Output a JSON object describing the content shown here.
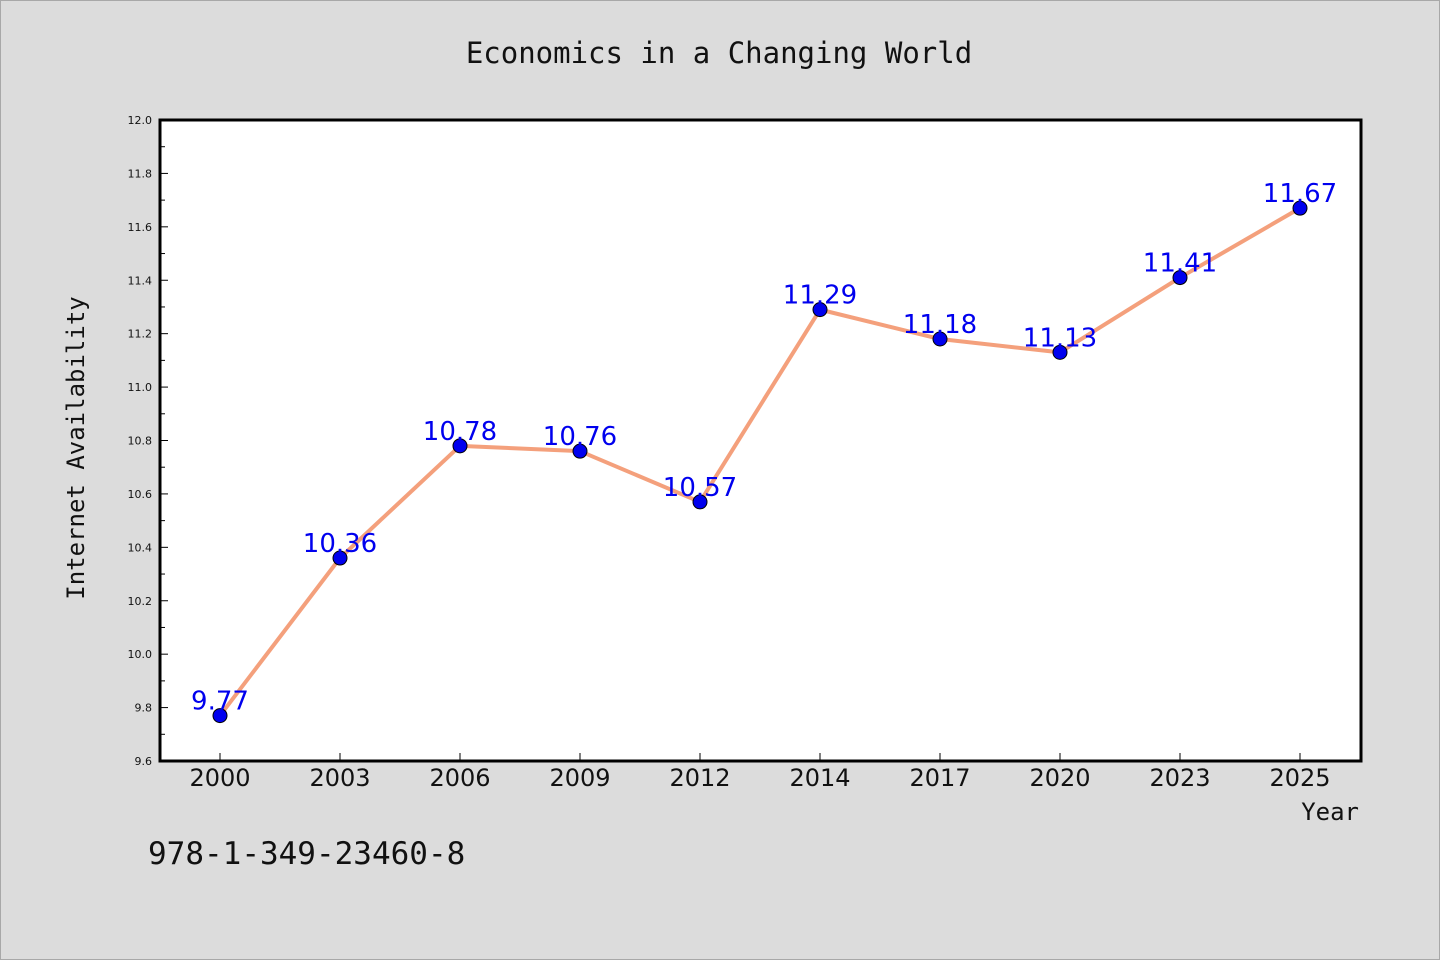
{
  "colors": {
    "page_background": "#dcdcdc",
    "plot_background": "#ffffff",
    "line": "#f4a07c",
    "marker_fill": "#0000ee",
    "data_label": "#0000ee"
  },
  "isbn": "978-1-349-23460-8",
  "chart_data": {
    "type": "line",
    "title": "Economics in a Changing World",
    "xlabel": "Year",
    "ylabel": "Internet Availability",
    "categories": [
      "2000",
      "2003",
      "2006",
      "2009",
      "2012",
      "2014",
      "2017",
      "2020",
      "2023",
      "2025"
    ],
    "series": [
      {
        "values": [
          9.77,
          10.36,
          10.78,
          10.76,
          10.57,
          11.29,
          11.18,
          11.13,
          11.41,
          11.67
        ],
        "value_labels": [
          "9.77",
          "10.36",
          "10.78",
          "10.76",
          "10.57",
          "11.29",
          "11.18",
          "11.13",
          "11.41",
          "11.67"
        ]
      }
    ],
    "ylim": [
      9.6,
      12.0
    ],
    "yticks": [
      "9.6",
      "9.8",
      "10.0",
      "10.2",
      "10.4",
      "10.6",
      "10.8",
      "11.0",
      "11.2",
      "11.4",
      "11.6",
      "11.8",
      "12.0"
    ],
    "grid": false,
    "legend": "none",
    "marker": "circle"
  }
}
